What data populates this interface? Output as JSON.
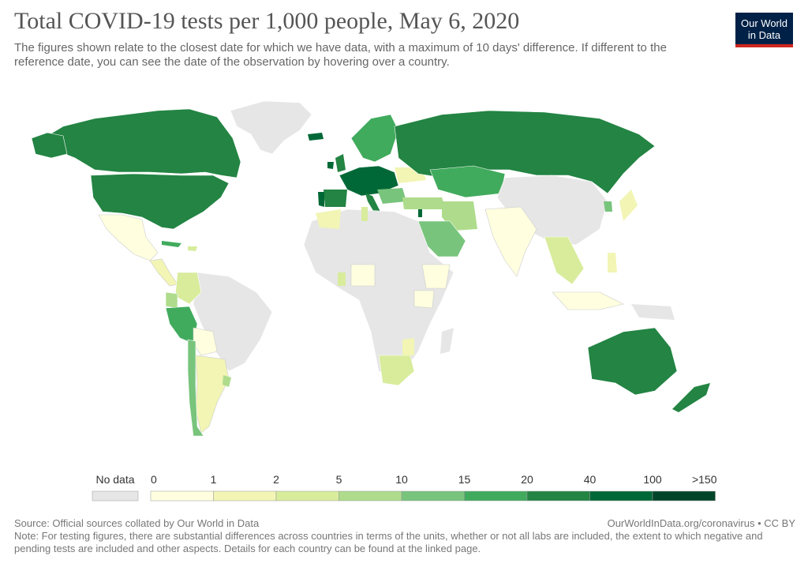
{
  "header": {
    "title": "Total COVID-19 tests per 1,000 people, May 6, 2020",
    "subtitle": "The figures shown relate to the closest date for which we have data, with a maximum of 10 days' difference. If different to the reference date, you can see the date of the observation by hovering over a country."
  },
  "logo": {
    "line1": "Our World",
    "line2": "in Data"
  },
  "legend": {
    "no_data_label": "No data",
    "no_data_color": "#e6e6e6",
    "ticks": [
      "0",
      "1",
      "2",
      "5",
      "10",
      "15",
      "20",
      "40",
      "100",
      ">150"
    ],
    "colors": [
      "#ffffe0",
      "#f2f5b4",
      "#d8ec9c",
      "#aedc8c",
      "#78c47c",
      "#41ab5d",
      "#238443",
      "#006837",
      "#004529"
    ]
  },
  "footer": {
    "source": "Source: Official sources collated by Our World in Data",
    "link": "OurWorldInData.org/coronavirus • CC BY",
    "note": "Note: For testing figures, there are substantial differences across countries in terms of the units, whether or not all labs are included, the extent to which negative and pending tests are included and other aspects. Details for each country can be found at the linked page."
  }
}
